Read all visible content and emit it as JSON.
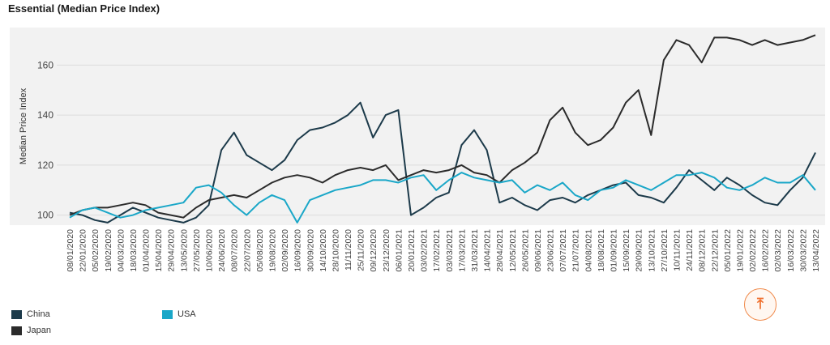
{
  "page": {
    "title": "Essential (Median Price Index)",
    "scroll_top_icon": "arrow-up-to-line-icon"
  },
  "colors": {
    "China": "#1c3a4a",
    "Japan": "#2b2b2b",
    "USA": "#1aa7c8",
    "plot_bg": "#f2f2f2",
    "accent": "#f0702e"
  },
  "chart_data": {
    "type": "line",
    "title": "Essential (Median Price Index)",
    "ylabel": "Median Price Index",
    "xlabel": "",
    "ylim": [
      96,
      175
    ],
    "yticks": [
      100,
      120,
      140,
      160
    ],
    "grid": true,
    "legend_position": "bottom-left",
    "x_ticks": [
      "08/01/2020",
      "22/01/2020",
      "05/02/2020",
      "19/02/2020",
      "04/03/2020",
      "18/03/2020",
      "01/04/2020",
      "15/04/2020",
      "29/04/2020",
      "13/05/2020",
      "27/05/2020",
      "10/06/2020",
      "24/06/2020",
      "08/07/2020",
      "22/07/2020",
      "05/08/2020",
      "19/08/2020",
      "02/09/2020",
      "16/09/2020",
      "30/09/2020",
      "14/10/2020",
      "28/10/2020",
      "11/11/2020",
      "25/11/2020",
      "09/12/2020",
      "23/12/2020",
      "06/01/2021",
      "20/01/2021",
      "03/02/2021",
      "17/02/2021",
      "03/03/2021",
      "17/03/2021",
      "31/03/2021",
      "14/04/2021",
      "28/04/2021",
      "12/05/2021",
      "26/05/2021",
      "09/06/2021",
      "23/06/2021",
      "07/07/2021",
      "21/07/2021",
      "04/08/2021",
      "18/08/2021",
      "01/09/2021",
      "15/09/2021",
      "29/09/2021",
      "13/10/2021",
      "27/10/2021",
      "10/11/2021",
      "24/11/2021",
      "08/12/2021",
      "22/12/2021",
      "05/01/2022",
      "19/01/2022",
      "02/02/2022",
      "16/02/2022",
      "02/03/2022",
      "16/03/2022",
      "30/03/2022",
      "13/04/2022"
    ],
    "series": [
      {
        "name": "China",
        "values": [
          101,
          100,
          98,
          97,
          100,
          103,
          101,
          99,
          98,
          97,
          99,
          104,
          126,
          133,
          124,
          121,
          118,
          122,
          130,
          134,
          135,
          137,
          140,
          145,
          131,
          140,
          142,
          100,
          103,
          107,
          109,
          128,
          134,
          126,
          105,
          107,
          104,
          102,
          106,
          107,
          105,
          108,
          110,
          112,
          113,
          108,
          107,
          105,
          111,
          118,
          114,
          110,
          115,
          112,
          108,
          105,
          104,
          110,
          115,
          125
        ]
      },
      {
        "name": "Japan",
        "values": [
          100,
          102,
          103,
          103,
          104,
          105,
          104,
          101,
          100,
          99,
          103,
          106,
          107,
          108,
          107,
          110,
          113,
          115,
          116,
          115,
          113,
          116,
          118,
          119,
          118,
          120,
          114,
          116,
          118,
          117,
          118,
          120,
          117,
          116,
          113,
          118,
          121,
          125,
          138,
          143,
          133,
          128,
          130,
          135,
          145,
          150,
          132,
          162,
          170,
          168,
          161,
          171,
          171,
          170,
          168,
          170,
          168,
          169,
          170,
          172
        ]
      },
      {
        "name": "USA",
        "values": [
          99,
          102,
          103,
          101,
          99,
          100,
          102,
          103,
          104,
          105,
          111,
          112,
          109,
          104,
          100,
          105,
          108,
          106,
          97,
          106,
          108,
          110,
          111,
          112,
          114,
          114,
          113,
          115,
          116,
          110,
          114,
          117,
          115,
          114,
          113,
          114,
          109,
          112,
          110,
          113,
          108,
          106,
          110,
          111,
          114,
          112,
          110,
          113,
          116,
          116,
          117,
          115,
          111,
          110,
          112,
          115,
          113,
          113,
          116,
          110
        ]
      }
    ],
    "legend": [
      {
        "name": "China"
      },
      {
        "name": "USA"
      },
      {
        "name": "Japan"
      }
    ]
  }
}
